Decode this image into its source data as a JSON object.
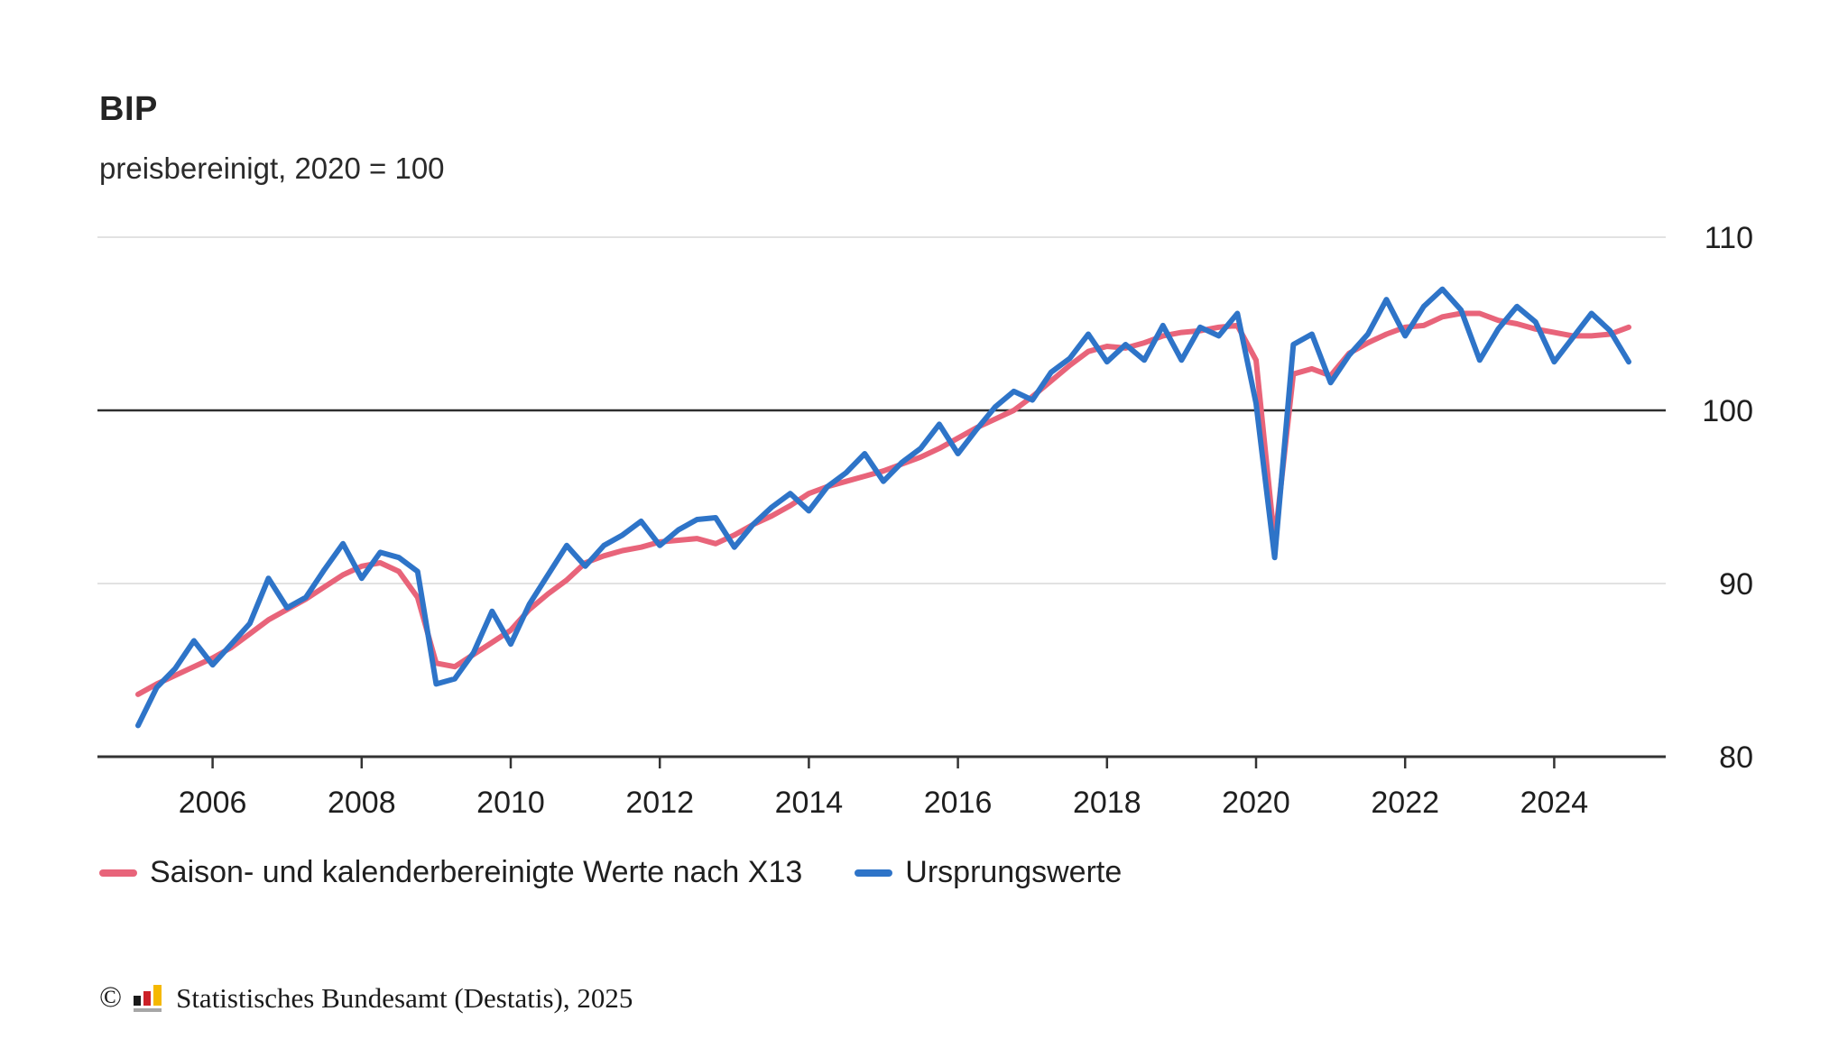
{
  "title": "BIP",
  "subtitle": "preisbereinigt, 2020 = 100",
  "legend": [
    {
      "label": "Saison- und kalenderbereinigte Werte nach X13",
      "color": "#e8647a"
    },
    {
      "label": "Ursprungswerte",
      "color": "#2e74c8"
    }
  ],
  "footer": {
    "copyright_symbol": "©",
    "logo": "destatis-bar-chart-logo",
    "source": "Statistisches Bundesamt (Destatis), 2025"
  },
  "colors": {
    "adjusted_line": "#e8647a",
    "original_line": "#2e74c8",
    "gridline": "#d9d9d9",
    "baseline_100": "#2e2e2e",
    "axis": "#333333",
    "text": "#1f1f1f"
  },
  "chart_data": {
    "type": "line",
    "title": "BIP",
    "subtitle": "preisbereinigt, 2020 = 100",
    "xlabel": "",
    "ylabel": "",
    "frequency": "quarterly",
    "x_start_year": 2005,
    "ylim": [
      80,
      110
    ],
    "baseline": 100,
    "grid": "horizontal",
    "legend_position": "bottom",
    "yticks": [
      110,
      100,
      90,
      80
    ],
    "xticks": [
      2006,
      2008,
      2010,
      2012,
      2014,
      2016,
      2018,
      2020,
      2022,
      2024
    ],
    "categories": [
      "2005-Q1",
      "2005-Q2",
      "2005-Q3",
      "2005-Q4",
      "2006-Q1",
      "2006-Q2",
      "2006-Q3",
      "2006-Q4",
      "2007-Q1",
      "2007-Q2",
      "2007-Q3",
      "2007-Q4",
      "2008-Q1",
      "2008-Q2",
      "2008-Q3",
      "2008-Q4",
      "2009-Q1",
      "2009-Q2",
      "2009-Q3",
      "2009-Q4",
      "2010-Q1",
      "2010-Q2",
      "2010-Q3",
      "2010-Q4",
      "2011-Q1",
      "2011-Q2",
      "2011-Q3",
      "2011-Q4",
      "2012-Q1",
      "2012-Q2",
      "2012-Q3",
      "2012-Q4",
      "2013-Q1",
      "2013-Q2",
      "2013-Q3",
      "2013-Q4",
      "2014-Q1",
      "2014-Q2",
      "2014-Q3",
      "2014-Q4",
      "2015-Q1",
      "2015-Q2",
      "2015-Q3",
      "2015-Q4",
      "2016-Q1",
      "2016-Q2",
      "2016-Q3",
      "2016-Q4",
      "2017-Q1",
      "2017-Q2",
      "2017-Q3",
      "2017-Q4",
      "2018-Q1",
      "2018-Q2",
      "2018-Q3",
      "2018-Q4",
      "2019-Q1",
      "2019-Q2",
      "2019-Q3",
      "2019-Q4",
      "2020-Q1",
      "2020-Q2",
      "2020-Q3",
      "2020-Q4",
      "2021-Q1",
      "2021-Q2",
      "2021-Q3",
      "2021-Q4",
      "2022-Q1",
      "2022-Q2",
      "2022-Q3",
      "2022-Q4",
      "2023-Q1",
      "2023-Q2",
      "2023-Q3",
      "2023-Q4",
      "2024-Q1",
      "2024-Q2",
      "2024-Q3",
      "2024-Q4",
      "2025-Q1"
    ],
    "series": [
      {
        "name": "Saison- und kalenderbereinigte Werte nach X13",
        "color": "#e8647a",
        "values": [
          83.6,
          84.2,
          84.7,
          85.2,
          85.7,
          86.3,
          87.1,
          87.9,
          88.5,
          89.1,
          89.8,
          90.5,
          91.0,
          91.2,
          90.7,
          89.2,
          85.4,
          85.2,
          85.9,
          86.6,
          87.3,
          88.5,
          89.4,
          90.2,
          91.2,
          91.6,
          91.9,
          92.1,
          92.4,
          92.5,
          92.6,
          92.3,
          92.8,
          93.4,
          93.9,
          94.5,
          95.2,
          95.6,
          95.9,
          96.2,
          96.5,
          96.9,
          97.3,
          97.8,
          98.4,
          99.0,
          99.5,
          100.0,
          100.8,
          101.7,
          102.6,
          103.4,
          103.7,
          103.6,
          103.9,
          104.3,
          104.5,
          104.6,
          104.8,
          104.9,
          102.9,
          92.4,
          102.1,
          102.4,
          102.0,
          103.3,
          103.9,
          104.4,
          104.8,
          104.9,
          105.4,
          105.6,
          105.6,
          105.2,
          105.0,
          104.7,
          104.5,
          104.3,
          104.3,
          104.4,
          104.8
        ]
      },
      {
        "name": "Ursprungswerte",
        "color": "#2e74c8",
        "values": [
          81.8,
          84.0,
          85.1,
          86.7,
          85.3,
          86.5,
          87.7,
          90.3,
          88.6,
          89.2,
          90.8,
          92.3,
          90.3,
          91.8,
          91.5,
          90.7,
          84.2,
          84.5,
          86.0,
          88.4,
          86.5,
          88.8,
          90.5,
          92.2,
          91.0,
          92.2,
          92.8,
          93.6,
          92.2,
          93.1,
          93.7,
          93.8,
          92.1,
          93.4,
          94.4,
          95.2,
          94.2,
          95.6,
          96.4,
          97.5,
          95.9,
          97.0,
          97.8,
          99.2,
          97.5,
          98.9,
          100.2,
          101.1,
          100.6,
          102.2,
          103.0,
          104.4,
          102.8,
          103.8,
          102.9,
          104.9,
          102.9,
          104.8,
          104.3,
          105.6,
          100.4,
          91.5,
          103.8,
          104.4,
          101.6,
          103.2,
          104.4,
          106.4,
          104.3,
          106.0,
          107.0,
          105.8,
          102.9,
          104.7,
          106.0,
          105.1,
          102.8,
          104.2,
          105.6,
          104.6,
          102.8
        ]
      }
    ]
  }
}
